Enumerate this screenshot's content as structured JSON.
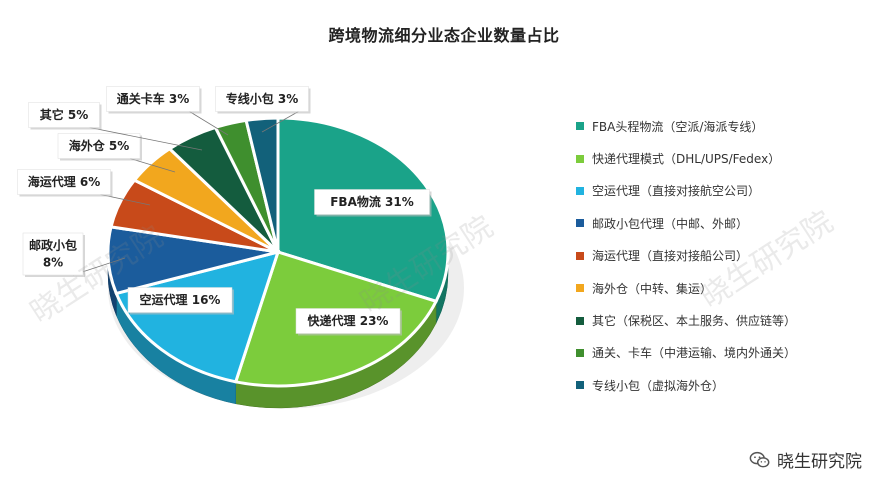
{
  "chart_data": {
    "type": "pie",
    "title": "跨境物流细分业态企业数量占比",
    "slices": [
      {
        "label": "FBA物流",
        "value": 31,
        "callout": "FBA物流 31%",
        "legend": "FBA头程物流（空派/海派专线）",
        "color": "#1aa389"
      },
      {
        "label": "快递代理",
        "value": 23,
        "callout": "快递代理 23%",
        "legend": "快递代理模式（DHL/UPS/Fedex）",
        "color": "#7ccc3c"
      },
      {
        "label": "空运代理",
        "value": 16,
        "callout": "空运代理 16%",
        "legend": "空运代理（直接对接航空公司）",
        "color": "#21b3e0"
      },
      {
        "label": "邮政小包",
        "value": 8,
        "callout": "邮政小包\n8%",
        "legend": "邮政小包代理（中邮、外邮）",
        "color": "#1b5c9c"
      },
      {
        "label": "海运代理",
        "value": 6,
        "callout": "海运代理 6%",
        "legend": "海运代理（直接对接船公司）",
        "color": "#c84a1a"
      },
      {
        "label": "海外仓",
        "value": 5,
        "callout": "海外仓 5%",
        "legend": "海外仓（中转、集运）",
        "color": "#f2a71e"
      },
      {
        "label": "其它",
        "value": 5,
        "callout": "其它 5%",
        "legend": "其它（保税区、本土服务、供应链等）",
        "color": "#145c3e"
      },
      {
        "label": "通关卡车",
        "value": 3,
        "callout": "通关卡车 3%",
        "legend": "通关、卡车（中港运输、境内外通关）",
        "color": "#3f8f2e"
      },
      {
        "label": "专线小包",
        "value": 3,
        "callout": "专线小包 3%",
        "legend": "专线小包（虚拟海外仓）",
        "color": "#12617a"
      }
    ],
    "legend_position": "right"
  },
  "footer": {
    "text": "晓生研究院"
  },
  "watermarks": [
    "晓生研究院",
    "晓生研究院",
    "晓生研究院"
  ]
}
